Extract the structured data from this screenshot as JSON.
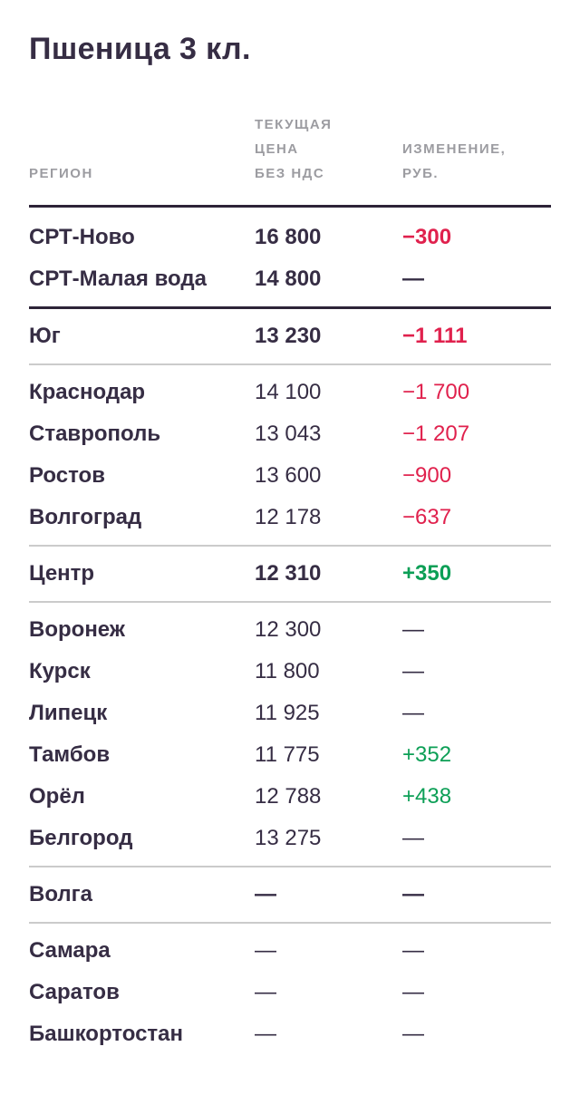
{
  "title": "Пшеница 3 кл.",
  "colors": {
    "background": "#FFFFFF",
    "text_dark": "#362D44",
    "header_gray": "#9C9CA1",
    "negative": "#E0214D",
    "positive": "#0C9F56",
    "divider_dark": "#2D2438",
    "divider_light": "#CBCBCB"
  },
  "table": {
    "headers": {
      "region": "РЕГИОН",
      "price": "ТЕКУЩАЯ\nЦЕНА\nБЕЗ НДС",
      "change": "ИЗМЕНЕНИЕ,\nРУБ."
    },
    "rows": [
      {
        "region": "СРТ-Ново",
        "price": "16 800",
        "change": "−300",
        "trend": "down",
        "emphasis": "group",
        "divider_after": null
      },
      {
        "region": "СРТ-Малая вода",
        "price": "14 800",
        "change": "—",
        "trend": "flat",
        "emphasis": "group",
        "divider_after": "dark"
      },
      {
        "region": "Юг",
        "price": "13 230",
        "change": "−1 111",
        "trend": "down",
        "emphasis": "group",
        "divider_after": "light"
      },
      {
        "region": "Краснодар",
        "price": "14 100",
        "change": "−1 700",
        "trend": "down",
        "emphasis": "city",
        "divider_after": null
      },
      {
        "region": "Ставрополь",
        "price": "13 043",
        "change": "−1 207",
        "trend": "down",
        "emphasis": "city",
        "divider_after": null
      },
      {
        "region": "Ростов",
        "price": "13 600",
        "change": "−900",
        "trend": "down",
        "emphasis": "city",
        "divider_after": null
      },
      {
        "region": "Волгоград",
        "price": "12 178",
        "change": "−637",
        "trend": "down",
        "emphasis": "city",
        "divider_after": "light"
      },
      {
        "region": "Центр",
        "price": "12 310",
        "change": "+350",
        "trend": "up",
        "emphasis": "group",
        "divider_after": "light"
      },
      {
        "region": "Воронеж",
        "price": "12 300",
        "change": "—",
        "trend": "flat",
        "emphasis": "city",
        "divider_after": null
      },
      {
        "region": "Курск",
        "price": "11 800",
        "change": "—",
        "trend": "flat",
        "emphasis": "city",
        "divider_after": null
      },
      {
        "region": "Липецк",
        "price": "11 925",
        "change": "—",
        "trend": "flat",
        "emphasis": "city",
        "divider_after": null
      },
      {
        "region": "Тамбов",
        "price": "11 775",
        "change": "+352",
        "trend": "up",
        "emphasis": "city",
        "divider_after": null
      },
      {
        "region": "Орёл",
        "price": "12 788",
        "change": "+438",
        "trend": "up",
        "emphasis": "city",
        "divider_after": null
      },
      {
        "region": "Белгород",
        "price": "13 275",
        "change": "—",
        "trend": "flat",
        "emphasis": "city",
        "divider_after": "light"
      },
      {
        "region": "Волга",
        "price": "—",
        "change": "—",
        "trend": "flat",
        "emphasis": "group",
        "divider_after": "light"
      },
      {
        "region": "Самара",
        "price": "—",
        "change": "—",
        "trend": "flat",
        "emphasis": "city",
        "divider_after": null
      },
      {
        "region": "Саратов",
        "price": "—",
        "change": "—",
        "trend": "flat",
        "emphasis": "city",
        "divider_after": null
      },
      {
        "region": "Башкортостан",
        "price": "—",
        "change": "—",
        "trend": "flat",
        "emphasis": "city",
        "divider_after": null
      }
    ]
  }
}
